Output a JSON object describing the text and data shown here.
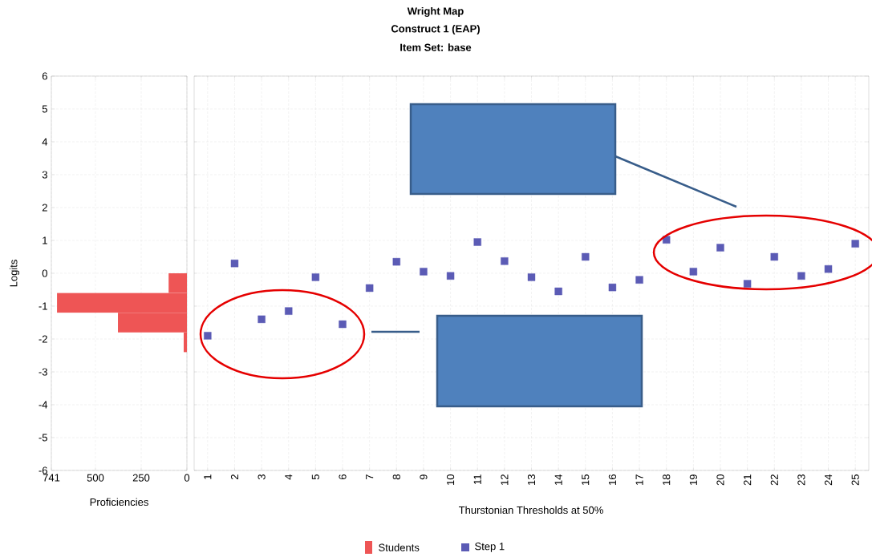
{
  "chart_data": [
    {
      "type": "histogram",
      "orientation": "horizontal",
      "ylabel": "Logits",
      "xlabel": "Proficiencies",
      "bins": [
        -2.4,
        -1.8,
        -1.2,
        -0.6,
        0
      ],
      "series": [
        {
          "name": "Students",
          "color": "#ee5555",
          "values": [
            18,
            377,
            710,
            100
          ]
        }
      ],
      "xlim": [
        741,
        0
      ],
      "xticks": [
        741,
        500,
        250,
        0
      ],
      "ylim": [
        -6,
        6
      ],
      "yticks": [
        -6,
        -5,
        -4,
        -3,
        -2,
        -1,
        0,
        1,
        2,
        3,
        4,
        5,
        6
      ],
      "grid": true,
      "legend": "bottom"
    },
    {
      "type": "scatter",
      "title": "Wright Map",
      "subtitle": "Construct 1 (EAP)",
      "annotations": [
        "Item Set: base"
      ],
      "xlabel": "Thurstonian Thresholds at 50%",
      "categories": [
        "1",
        "2",
        "3",
        "4",
        "5",
        "6",
        "7",
        "8",
        "9",
        "10",
        "11",
        "12",
        "13",
        "14",
        "15",
        "16",
        "17",
        "18",
        "19",
        "20",
        "21",
        "22",
        "23",
        "24",
        "25"
      ],
      "series": [
        {
          "name": "Step 1",
          "color": "#5b5bb5",
          "values": [
            -1.9,
            0.3,
            -1.4,
            -1.15,
            -0.12,
            -1.55,
            -0.45,
            0.35,
            0.05,
            -0.08,
            0.95,
            0.37,
            -0.12,
            -0.55,
            0.5,
            -0.43,
            -0.2,
            1.02,
            0.05,
            0.78,
            -0.32,
            0.5,
            -0.08,
            0.13,
            0.9
          ]
        }
      ],
      "ylim": [
        -6,
        6
      ],
      "yticks": [
        -6,
        -5,
        -4,
        -3,
        -2,
        -1,
        0,
        1,
        2,
        3,
        4,
        5,
        6
      ],
      "tick_labels": "x",
      "grid": true,
      "marker": "square",
      "legend": "bottom"
    }
  ]
}
